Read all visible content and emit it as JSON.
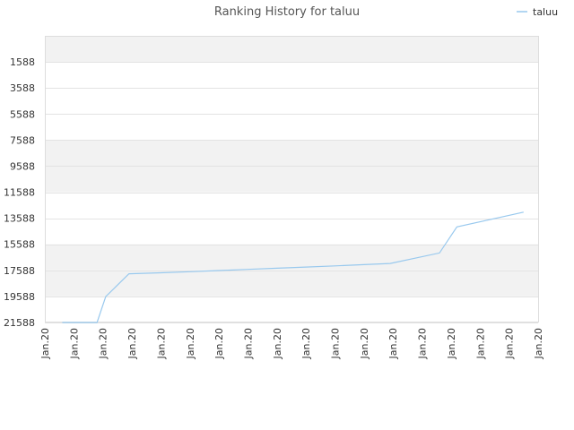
{
  "chart_data": {
    "type": "line",
    "title": "Ranking History for taluu",
    "xlabel": "",
    "ylabel": "",
    "y_inverted": true,
    "ylim": [
      -412,
      21588
    ],
    "y_ticks": [
      1588,
      3588,
      5588,
      7588,
      9588,
      11588,
      13588,
      15588,
      17588,
      19588,
      21588
    ],
    "x_tick_labels": [
      "Jan.20",
      "Jan.20",
      "Jan.20",
      "Jan.20",
      "Jan.20",
      "Jan.20",
      "Jan.20",
      "Jan.20",
      "Jan.20",
      "Jan.20",
      "Jan.20",
      "Jan.20",
      "Jan.20",
      "Jan.20",
      "Jan.20",
      "Jan.20",
      "Jan.20",
      "Jan.20"
    ],
    "x_range": [
      0,
      17
    ],
    "legend": {
      "position": "top-right"
    },
    "grid": {
      "horizontal_bands": true,
      "band_colors": [
        "#f2f2f2",
        "#ffffff"
      ]
    },
    "series": [
      {
        "name": "taluu",
        "color": "#99c9ee",
        "points": [
          {
            "x": 0.6,
            "y": 21588
          },
          {
            "x": 1.8,
            "y": 21588
          },
          {
            "x": 2.1,
            "y": 19600
          },
          {
            "x": 2.9,
            "y": 17850
          },
          {
            "x": 4.0,
            "y": 17770
          },
          {
            "x": 5.0,
            "y": 17690
          },
          {
            "x": 6.0,
            "y": 17600
          },
          {
            "x": 7.0,
            "y": 17510
          },
          {
            "x": 8.0,
            "y": 17420
          },
          {
            "x": 9.0,
            "y": 17330
          },
          {
            "x": 10.0,
            "y": 17240
          },
          {
            "x": 11.0,
            "y": 17150
          },
          {
            "x": 11.9,
            "y": 17060
          },
          {
            "x": 13.6,
            "y": 16250
          },
          {
            "x": 14.2,
            "y": 14250
          },
          {
            "x": 16.5,
            "y": 13120
          }
        ]
      }
    ]
  }
}
